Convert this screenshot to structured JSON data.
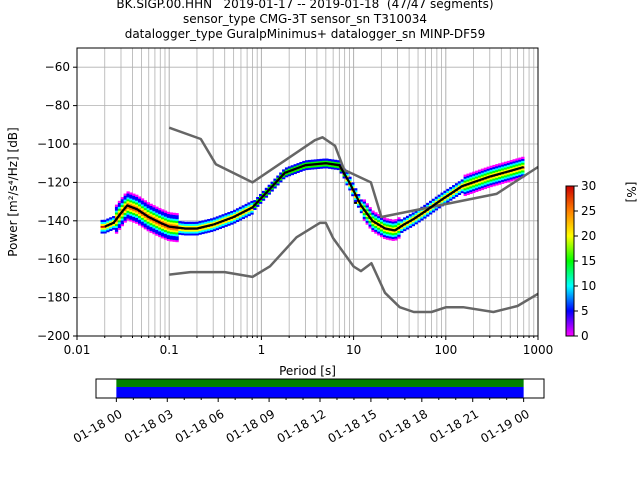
{
  "chart_data": {
    "type": "heatmap",
    "title_lines": [
      "BK.SIGP.00.HHN   2019-01-17 -- 2019-01-18  (47/47 segments)",
      "sensor_type CMG-3T sensor_sn T310034",
      "datalogger_type GuralpMinimus+ datalogger_sn MINP-DF59"
    ],
    "xlabel": "Period [s]",
    "ylabel": "Power [m²/s⁴/Hz] [dB]",
    "xscale": "log",
    "xlim": [
      0.01,
      1000
    ],
    "ylim": [
      -200,
      -50
    ],
    "xtick_labels": [
      "0.01",
      "0.1",
      "1",
      "10",
      "100",
      "1000"
    ],
    "ytick_labels": [
      "−200",
      "−180",
      "−160",
      "−140",
      "−120",
      "−100",
      "−80",
      "−60"
    ],
    "grid": true,
    "colorbar": {
      "label": "[%]",
      "range": [
        0,
        30
      ],
      "tick_labels": [
        "0",
        "5",
        "10",
        "15",
        "20",
        "25",
        "30"
      ],
      "colors": [
        "#ff00ff",
        "#0000ff",
        "#00ffff",
        "#00ff00",
        "#ffff00",
        "#ff8000",
        "#cc0000"
      ]
    },
    "noise_model_high": {
      "period": [
        0.1,
        0.22,
        0.32,
        0.8,
        3.8,
        4.6,
        6.3,
        7.9,
        15.4,
        20,
        354.8,
        1000
      ],
      "power": [
        -91.5,
        -97.4,
        -110.5,
        -120,
        -98,
        -96.5,
        -101,
        -113.5,
        -120,
        -138,
        -126,
        -112
      ]
    },
    "noise_model_low": {
      "period": [
        0.1,
        0.17,
        0.4,
        0.8,
        1.24,
        2.4,
        4.3,
        5,
        6,
        10,
        12,
        15.6,
        21.9,
        31.6,
        45,
        70,
        101,
        154,
        328,
        600,
        1000
      ],
      "power": [
        -168,
        -166.7,
        -166.7,
        -169.2,
        -163.7,
        -148.6,
        -141.1,
        -141.1,
        -149,
        -163.8,
        -166.2,
        -162.1,
        -177.5,
        -185,
        -187.5,
        -187.5,
        -185,
        -185,
        -187.5,
        -184.4,
        -178
      ]
    },
    "mode_curve": {
      "period": [
        0.02,
        0.025,
        0.03,
        0.035,
        0.045,
        0.06,
        0.08,
        0.1,
        0.15,
        0.2,
        0.3,
        0.5,
        0.8,
        1.2,
        1.8,
        3,
        5,
        7,
        9,
        12,
        16,
        22,
        28,
        35,
        45,
        60,
        90,
        150,
        300,
        500,
        700
      ],
      "power": [
        -143,
        -141,
        -136,
        -132,
        -134,
        -138,
        -141,
        -143,
        -144,
        -144,
        -142,
        -138,
        -133,
        -124,
        -115,
        -111,
        -110,
        -111,
        -120,
        -132,
        -140,
        -144,
        -145,
        -142,
        -139,
        -135,
        -129,
        -122,
        -117,
        -114,
        -112
      ]
    },
    "time_axis": {
      "start_label": "01-18 00",
      "tick_labels": [
        "01-18 00",
        "01-18 03",
        "01-18 06",
        "01-18 09",
        "01-18 12",
        "01-18 15",
        "01-18 18",
        "01-18 21",
        "01-19 00"
      ],
      "coverage_start_hours": 0,
      "coverage_end_hours": 24,
      "range_hours": [
        -1.2,
        25.2
      ],
      "bar_colors": [
        "#008000",
        "#0000ff"
      ]
    }
  }
}
